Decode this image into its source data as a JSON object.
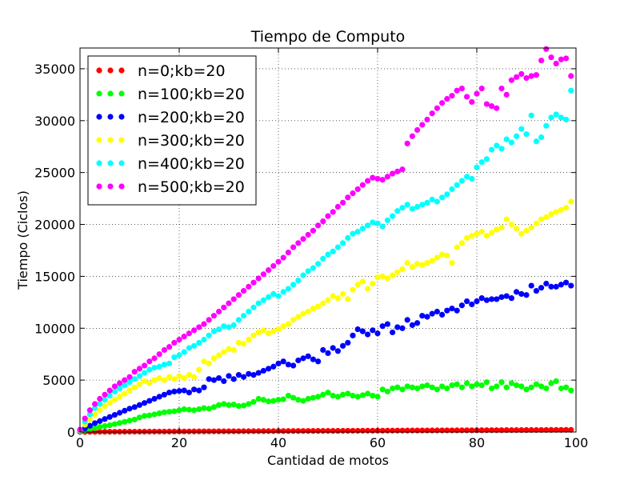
{
  "chart_data": {
    "type": "scatter",
    "title": "Tiempo de Computo",
    "xlabel": "Cantidad de motos",
    "ylabel": "Tiempo (Ciclos)",
    "xlim": [
      0,
      100
    ],
    "ylim": [
      0,
      37000
    ],
    "xticks": [
      0,
      20,
      40,
      60,
      80,
      100
    ],
    "yticks": [
      0,
      5000,
      10000,
      15000,
      20000,
      25000,
      30000,
      35000
    ],
    "grid": true,
    "legend": "top-left",
    "x": [
      0,
      1,
      2,
      3,
      4,
      5,
      6,
      7,
      8,
      9,
      10,
      11,
      12,
      13,
      14,
      15,
      16,
      17,
      18,
      19,
      20,
      21,
      22,
      23,
      24,
      25,
      26,
      27,
      28,
      29,
      30,
      31,
      32,
      33,
      34,
      35,
      36,
      37,
      38,
      39,
      40,
      41,
      42,
      43,
      44,
      45,
      46,
      47,
      48,
      49,
      50,
      51,
      52,
      53,
      54,
      55,
      56,
      57,
      58,
      59,
      60,
      61,
      62,
      63,
      64,
      65,
      66,
      67,
      68,
      69,
      70,
      71,
      72,
      73,
      74,
      75,
      76,
      77,
      78,
      79,
      80,
      81,
      82,
      83,
      84,
      85,
      86,
      87,
      88,
      89,
      90,
      91,
      92,
      93,
      94,
      95,
      96,
      97,
      98,
      99
    ],
    "series": [
      {
        "name": "n=0;kb=20",
        "color": "#ff0000",
        "values": [
          10,
          12,
          14,
          16,
          18,
          20,
          22,
          24,
          26,
          28,
          30,
          32,
          34,
          36,
          38,
          40,
          42,
          44,
          46,
          48,
          50,
          52,
          54,
          56,
          58,
          60,
          62,
          64,
          66,
          68,
          70,
          72,
          74,
          76,
          78,
          80,
          82,
          84,
          86,
          88,
          90,
          92,
          94,
          96,
          98,
          100,
          102,
          104,
          106,
          108,
          110,
          112,
          114,
          116,
          118,
          120,
          122,
          124,
          126,
          128,
          130,
          132,
          134,
          136,
          138,
          140,
          142,
          144,
          146,
          148,
          150,
          152,
          154,
          156,
          158,
          160,
          162,
          164,
          166,
          168,
          170,
          172,
          174,
          176,
          178,
          180,
          182,
          184,
          186,
          188,
          190,
          192,
          194,
          196,
          198,
          200,
          202,
          204,
          206,
          208
        ]
      },
      {
        "name": "n=100;kb=20",
        "color": "#00ff00",
        "values": [
          40,
          150,
          260,
          380,
          480,
          580,
          650,
          760,
          870,
          980,
          1100,
          1200,
          1400,
          1550,
          1600,
          1700,
          1800,
          1900,
          1950,
          2000,
          2100,
          2200,
          2150,
          2100,
          2200,
          2300,
          2250,
          2400,
          2600,
          2700,
          2600,
          2650,
          2500,
          2550,
          2700,
          2900,
          3200,
          3100,
          2950,
          3000,
          3100,
          3150,
          3500,
          3300,
          3100,
          3000,
          3200,
          3300,
          3400,
          3600,
          3800,
          3500,
          3400,
          3600,
          3700,
          3500,
          3400,
          3550,
          3700,
          3500,
          3400,
          4100,
          3900,
          4200,
          4300,
          4100,
          4400,
          4300,
          4200,
          4400,
          4500,
          4300,
          4100,
          4400,
          4200,
          4500,
          4600,
          4300,
          4700,
          4400,
          4600,
          4500,
          4800,
          4200,
          4400,
          4800,
          4300,
          4700,
          4500,
          4400,
          4100,
          4300,
          4600,
          4400,
          4200,
          4700,
          4900,
          4200,
          4300,
          4000
        ]
      },
      {
        "name": "n=200;kb=20",
        "color": "#0000ff",
        "values": [
          80,
          350,
          600,
          850,
          1050,
          1250,
          1450,
          1650,
          1850,
          2050,
          2250,
          2400,
          2600,
          2800,
          3000,
          3200,
          3400,
          3600,
          3800,
          3900,
          3950,
          4000,
          3800,
          4100,
          4000,
          4300,
          5100,
          5000,
          5200,
          4900,
          5400,
          5100,
          5500,
          5300,
          5600,
          5500,
          5700,
          5900,
          6100,
          6300,
          6600,
          6800,
          6500,
          6400,
          6900,
          7100,
          7300,
          7000,
          6800,
          7900,
          7600,
          8100,
          7800,
          8300,
          8600,
          9300,
          9900,
          9700,
          9400,
          9800,
          9500,
          10200,
          10400,
          9600,
          10100,
          10000,
          10800,
          10300,
          10500,
          11200,
          11100,
          11400,
          11600,
          11300,
          11700,
          11900,
          11700,
          12200,
          12600,
          12300,
          12600,
          12900,
          12700,
          12800,
          12800,
          13000,
          13100,
          12900,
          13500,
          13300,
          13200,
          14100,
          13600,
          13900,
          14300,
          14000,
          14000,
          14200,
          14400,
          14100
        ]
      },
      {
        "name": "n=300;kb=20",
        "color": "#ffff00",
        "values": [
          120,
          700,
          1200,
          1700,
          2100,
          2500,
          2800,
          3100,
          3400,
          3700,
          4000,
          4300,
          4600,
          4900,
          4700,
          5000,
          5200,
          5000,
          5300,
          5100,
          5400,
          5200,
          5500,
          5300,
          6000,
          6800,
          6600,
          7100,
          7400,
          7700,
          8000,
          7900,
          8600,
          8500,
          8900,
          9300,
          9600,
          9800,
          9500,
          9700,
          9900,
          10200,
          10400,
          10800,
          11100,
          11400,
          11600,
          11900,
          12100,
          12400,
          12700,
          13100,
          12900,
          13300,
          12800,
          13700,
          14200,
          14500,
          13800,
          14300,
          14900,
          15000,
          14800,
          15100,
          15400,
          15700,
          16300,
          15900,
          16200,
          16100,
          16300,
          16500,
          16800,
          17100,
          17000,
          16300,
          17800,
          18200,
          18700,
          18900,
          19100,
          19300,
          18900,
          19200,
          19500,
          19700,
          20500,
          20000,
          19600,
          19100,
          19400,
          19700,
          20100,
          20500,
          20700,
          21000,
          21200,
          21400,
          21600,
          22200
        ]
      },
      {
        "name": "n=400;kb=20",
        "color": "#00ffff",
        "values": [
          180,
          1000,
          1700,
          2300,
          2700,
          3100,
          3500,
          3900,
          4200,
          4500,
          4800,
          5100,
          5400,
          5700,
          6000,
          6200,
          6300,
          6500,
          6600,
          7200,
          7400,
          7700,
          8100,
          8300,
          8600,
          8900,
          9300,
          9700,
          9900,
          10200,
          10100,
          10300,
          10800,
          11200,
          11600,
          12000,
          12400,
          12700,
          13000,
          13300,
          13100,
          13500,
          13800,
          14200,
          14600,
          15100,
          15500,
          15800,
          16200,
          16700,
          17100,
          17400,
          17800,
          18200,
          18700,
          19100,
          19300,
          19600,
          19900,
          20200,
          20100,
          19800,
          20400,
          20800,
          21300,
          21600,
          21900,
          21500,
          21700,
          21900,
          22100,
          22400,
          22200,
          22600,
          22900,
          23400,
          23800,
          24200,
          24600,
          24400,
          25500,
          26000,
          26300,
          27200,
          27600,
          27300,
          28200,
          27900,
          28500,
          29200,
          28700,
          30500,
          28000,
          28400,
          29500,
          30300,
          30600,
          30300,
          30100,
          32900
        ]
      },
      {
        "name": "n=500;kb=20",
        "color": "#ff00ff",
        "values": [
          220,
          1300,
          2100,
          2700,
          3200,
          3600,
          4000,
          4400,
          4700,
          5000,
          5300,
          5800,
          6100,
          6400,
          6800,
          7100,
          7500,
          7900,
          8200,
          8600,
          8900,
          9200,
          9500,
          9800,
          10100,
          10400,
          10800,
          11200,
          11600,
          12000,
          12400,
          12800,
          13200,
          13600,
          14000,
          14400,
          14800,
          15200,
          15600,
          16000,
          16400,
          16800,
          17300,
          17800,
          18200,
          18600,
          19000,
          19400,
          19900,
          20300,
          20800,
          21200,
          21700,
          22100,
          22600,
          23000,
          23400,
          23800,
          24200,
          24500,
          24400,
          24300,
          24600,
          24900,
          25100,
          25300,
          27800,
          28500,
          29100,
          29600,
          30100,
          30700,
          31200,
          31700,
          32100,
          32400,
          32900,
          33100,
          32300,
          31800,
          32600,
          33100,
          31600,
          31400,
          31200,
          33100,
          32500,
          33900,
          34200,
          34500,
          34100,
          34300,
          34400,
          35800,
          36900,
          36100,
          35500,
          35900,
          36000,
          34300
        ]
      }
    ]
  }
}
